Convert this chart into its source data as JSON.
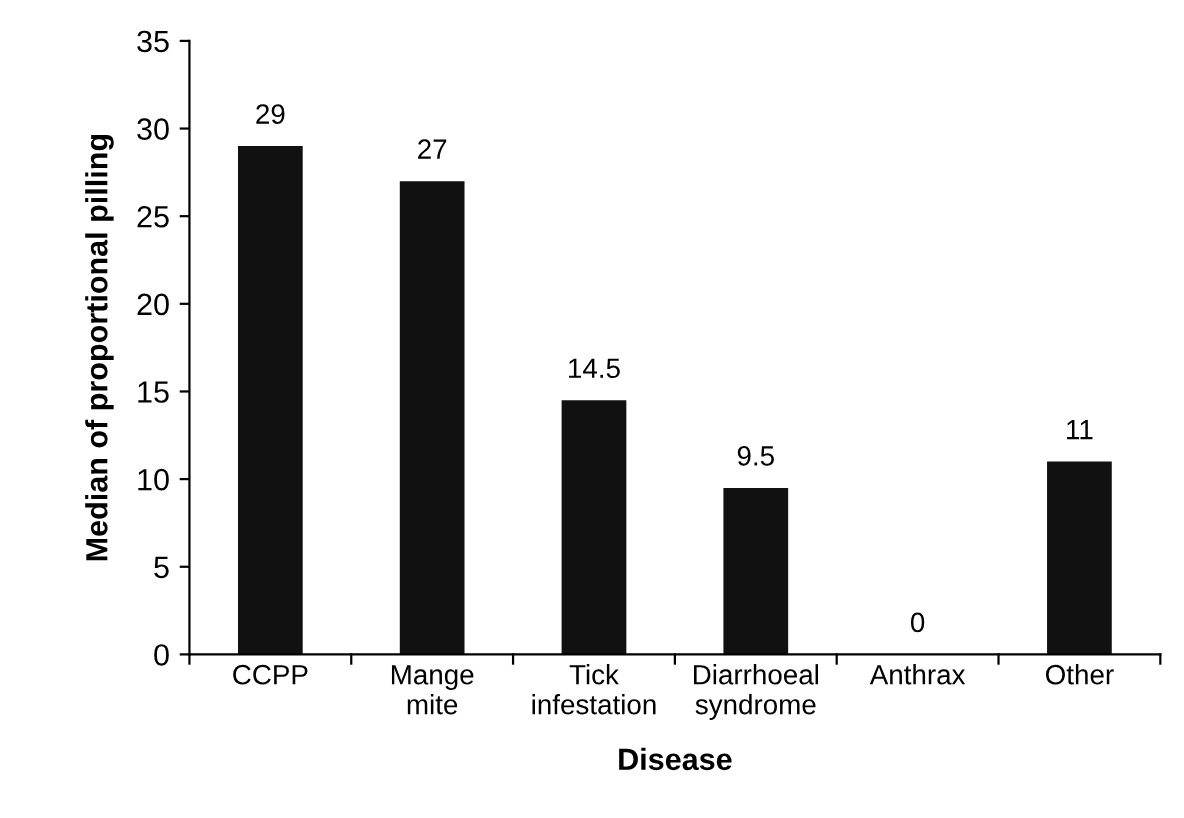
{
  "chart_data": {
    "type": "bar",
    "categories": [
      "CCPP",
      "Mange\nmite",
      "Tick\ninfestation",
      "Diarrhoeal\nsyndrome",
      "Anthrax",
      "Other"
    ],
    "values": [
      29,
      27,
      14.5,
      9.5,
      0,
      11
    ],
    "color": "#111111",
    "xlabel": "Disease",
    "ylabel": "Median of proportional pilling",
    "ylim": [
      0,
      35
    ],
    "yticks": [
      0,
      5,
      10,
      15,
      20,
      25,
      30,
      35
    ],
    "data_labels": true,
    "grid": false,
    "legend": false
  }
}
